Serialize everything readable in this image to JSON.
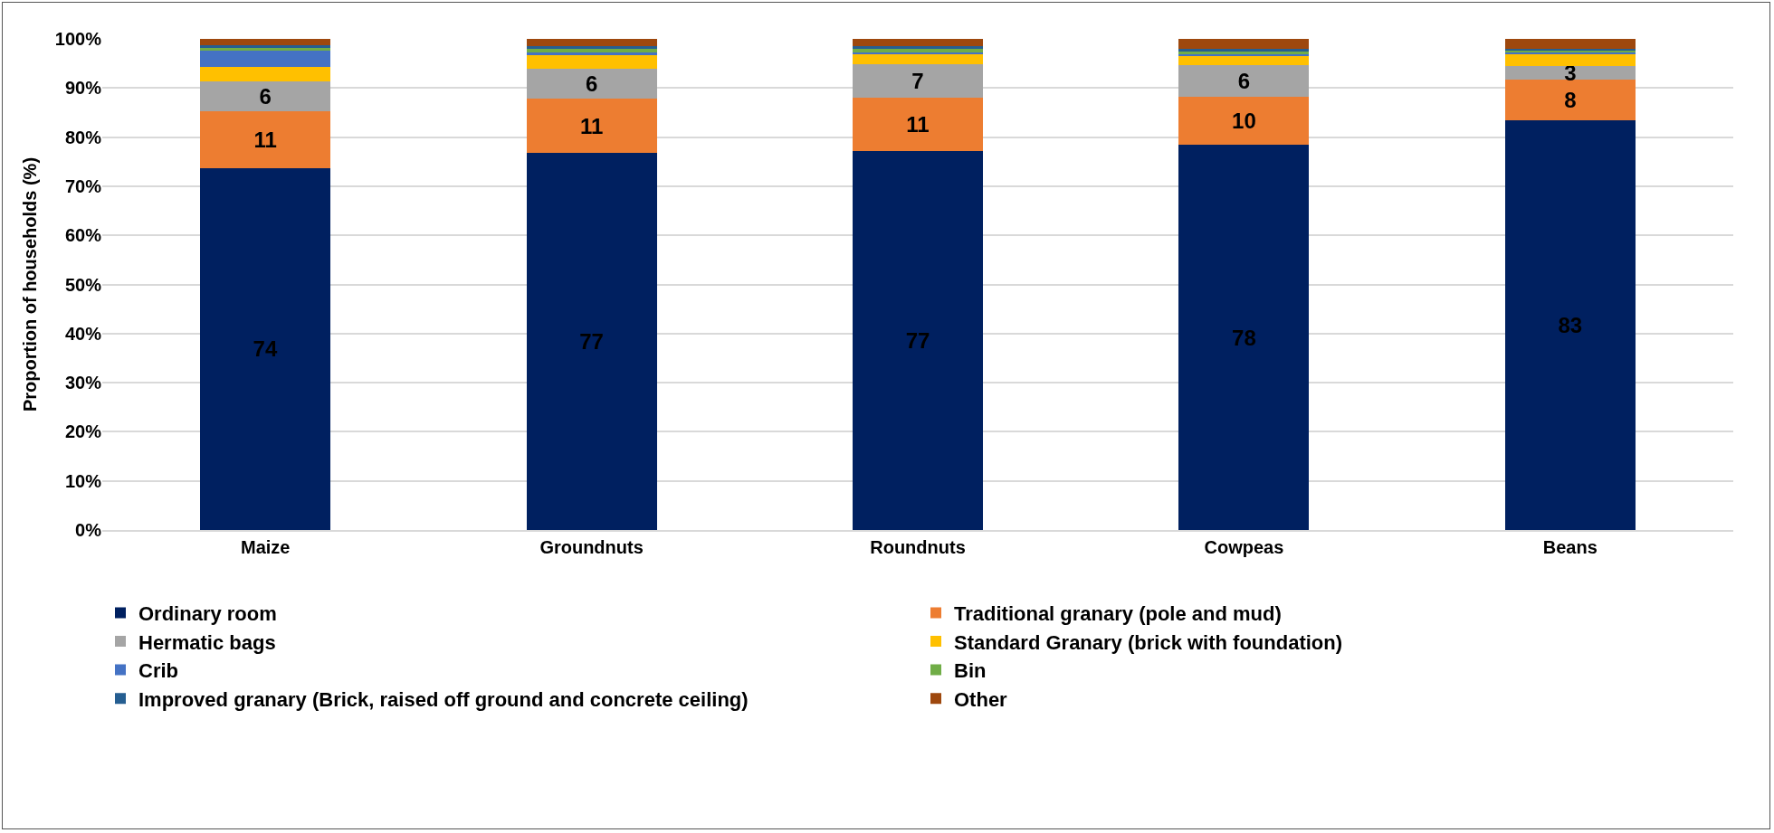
{
  "chart_data": {
    "type": "bar",
    "stacked": true,
    "ylabel": "Proportion of households (%)",
    "categories": [
      "Maize",
      "Groundnuts",
      "Roundnuts",
      "Cowpeas",
      "Beans"
    ],
    "series": [
      {
        "name": "Ordinary room",
        "color": "#002060",
        "values": [
          73.7,
          76.8,
          77.2,
          78.4,
          83.4
        ],
        "value_labels": [
          "74",
          "77",
          "77",
          "78",
          "83"
        ]
      },
      {
        "name": "Traditional granary (pole and mud)",
        "color": "#ed7d31",
        "values": [
          11.5,
          11.0,
          10.9,
          9.8,
          8.4
        ],
        "value_labels": [
          "11",
          "11",
          "11",
          "10",
          "8"
        ]
      },
      {
        "name": "Hermatic bags",
        "color": "#a5a5a5",
        "values": [
          6.1,
          6.2,
          6.7,
          6.5,
          2.7
        ],
        "value_labels": [
          "6",
          "6",
          "7",
          "6",
          "3"
        ]
      },
      {
        "name": "Standard Granary (brick with foundation)",
        "color": "#ffc000",
        "values": [
          3.0,
          2.7,
          2.0,
          1.8,
          2.3
        ]
      },
      {
        "name": "Crib",
        "color": "#4472c4",
        "values": [
          3.3,
          0.5,
          0.5,
          0.3,
          0.5
        ]
      },
      {
        "name": "Bin",
        "color": "#70ad47",
        "values": [
          0.6,
          0.8,
          0.7,
          0.7,
          0.4
        ]
      },
      {
        "name": "Improved granary (Brick, raised off ground and concrete ceiling)",
        "color": "#255e91",
        "values": [
          0.6,
          0.5,
          0.5,
          0.5,
          0.3
        ]
      },
      {
        "name": "Other",
        "color": "#9e480e",
        "values": [
          1.2,
          1.5,
          1.5,
          2.0,
          2.0
        ]
      }
    ],
    "ylim": [
      0,
      100
    ],
    "yticks": [
      {
        "value": 0,
        "label": "0%"
      },
      {
        "value": 10,
        "label": "10%"
      },
      {
        "value": 20,
        "label": "20%"
      },
      {
        "value": 30,
        "label": "30%"
      },
      {
        "value": 40,
        "label": "40%"
      },
      {
        "value": 50,
        "label": "50%"
      },
      {
        "value": 60,
        "label": "60%"
      },
      {
        "value": 70,
        "label": "70%"
      },
      {
        "value": 80,
        "label": "80%"
      },
      {
        "value": 90,
        "label": "90%"
      },
      {
        "value": 100,
        "label": "100%"
      }
    ],
    "grid": "y",
    "legend": "bottom"
  }
}
